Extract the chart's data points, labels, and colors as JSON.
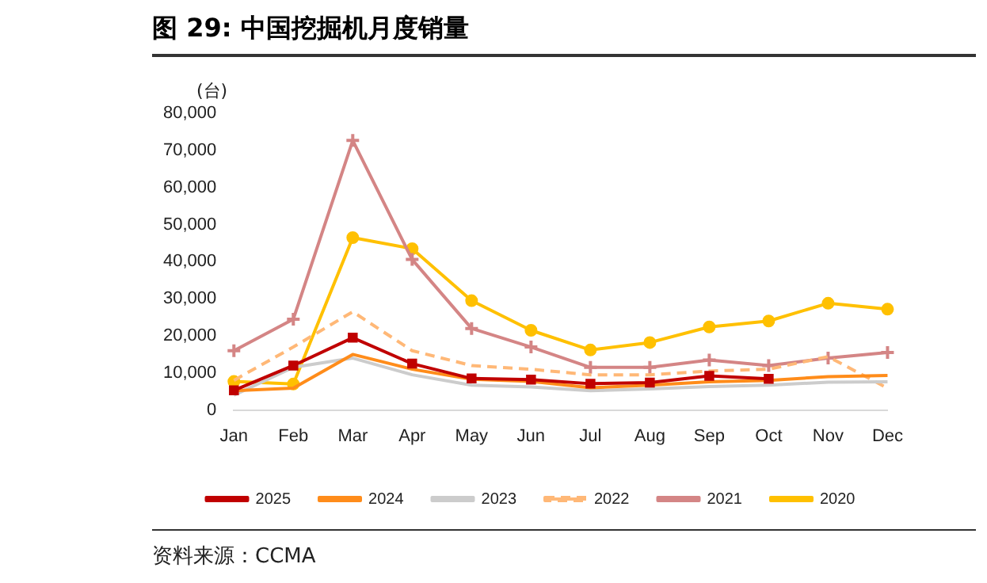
{
  "chart_data": {
    "type": "line",
    "title": "图 29: 中国挖掘机月度销量",
    "ylabel": "(台)",
    "categories": [
      "Jan",
      "Feb",
      "Mar",
      "Apr",
      "May",
      "Jun",
      "Jul",
      "Aug",
      "Sep",
      "Oct",
      "Nov",
      "Dec"
    ],
    "series": [
      {
        "name": "2025",
        "color": "#c00000",
        "marker": "square",
        "line_style": "solid",
        "values": [
          5300,
          12000,
          19500,
          12500,
          8500,
          8200,
          7100,
          7400,
          9200,
          8400,
          null,
          null
        ]
      },
      {
        "name": "2024",
        "color": "#ff8c1a",
        "marker": "none",
        "line_style": "solid",
        "values": [
          5200,
          5900,
          15000,
          11000,
          8300,
          7700,
          6000,
          6700,
          7600,
          8000,
          9000,
          9300
        ]
      },
      {
        "name": "2023",
        "color": "#cccccc",
        "marker": "none",
        "line_style": "solid",
        "values": [
          4000,
          11500,
          14000,
          9500,
          6700,
          6200,
          5200,
          5700,
          6300,
          6700,
          7500,
          7600
        ]
      },
      {
        "name": "2022",
        "color": "#ffb877",
        "marker": "none",
        "line_style": "dashed",
        "values": [
          8000,
          17000,
          26500,
          16000,
          12000,
          11000,
          9500,
          9500,
          10500,
          11000,
          14400,
          5900
        ]
      },
      {
        "name": "2021",
        "color": "#d48585",
        "marker": "cross",
        "line_style": "solid",
        "values": [
          16000,
          24500,
          72700,
          40600,
          22000,
          17000,
          11500,
          11500,
          13500,
          12000,
          14000,
          15500
        ]
      },
      {
        "name": "2020",
        "color": "#ffc000",
        "marker": "circle",
        "line_style": "solid",
        "values": [
          7700,
          7000,
          46500,
          43500,
          29500,
          21500,
          16200,
          18200,
          22400,
          24000,
          28800,
          27200
        ]
      }
    ],
    "ylim": [
      0,
      80000
    ],
    "yticks": [
      0,
      {
        "value": 10000,
        "label": "10,000"
      },
      {
        "value": 20000,
        "label": "20,000"
      },
      {
        "value": 30000,
        "label": "30,000"
      },
      {
        "value": 40000,
        "label": "40,000"
      },
      {
        "value": 50000,
        "label": "50,000"
      },
      {
        "value": 60000,
        "label": "60,000"
      },
      {
        "value": 70000,
        "label": "70,000"
      },
      {
        "value": 80000,
        "label": "80,000"
      }
    ],
    "grid": false,
    "legend": "bottom",
    "annotations": [
      "资料来源：CCMA"
    ]
  }
}
